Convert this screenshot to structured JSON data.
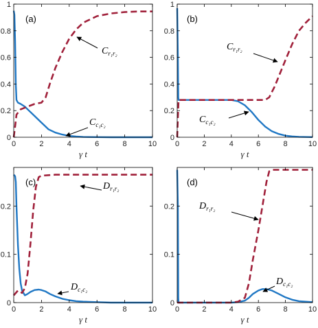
{
  "colors": {
    "c_series": "#1f77c4",
    "r_series": "#a0203a"
  },
  "chart_data": [
    {
      "type": "line",
      "panel": "(a)",
      "xlabel": "γ t",
      "xlim": [
        0,
        10
      ],
      "ylim": [
        0,
        1
      ],
      "xticks": [
        0,
        2,
        4,
        6,
        8,
        10
      ],
      "yticks": [
        0,
        0.2,
        0.4,
        0.6,
        0.8,
        1
      ],
      "ytick_labels": [
        "0",
        "0.2",
        "0.4",
        "0.6",
        "0.8",
        "1"
      ],
      "series": [
        {
          "label_main": "C",
          "label_sub": "c₁c₂",
          "style": "solid",
          "color": "#1f77c4",
          "x": [
            0,
            0.05,
            0.1,
            0.15,
            0.2,
            0.3,
            0.5,
            0.8,
            1.0,
            1.5,
            2.0,
            2.5,
            3.0,
            3.5,
            4.0,
            4.5,
            5.0,
            6.0,
            7.0,
            8.0,
            9.0,
            10.0
          ],
          "y": [
            0.95,
            0.92,
            0.72,
            0.4,
            0.28,
            0.26,
            0.25,
            0.23,
            0.21,
            0.16,
            0.11,
            0.06,
            0.035,
            0.02,
            0.01,
            0.005,
            0.002,
            0.001,
            0,
            0,
            0,
            0
          ]
        },
        {
          "label_main": "C",
          "label_sub": "r₁r₂",
          "style": "dashed",
          "color": "#a0203a",
          "x": [
            0,
            0.1,
            0.2,
            0.5,
            1.0,
            1.5,
            2.0,
            2.3,
            2.6,
            3.0,
            3.5,
            4.0,
            4.5,
            5.0,
            6.0,
            7.0,
            8.0,
            9.0,
            10.0
          ],
          "y": [
            0,
            0.08,
            0.17,
            0.21,
            0.23,
            0.25,
            0.26,
            0.3,
            0.4,
            0.52,
            0.64,
            0.74,
            0.81,
            0.86,
            0.91,
            0.93,
            0.94,
            0.945,
            0.945
          ]
        }
      ]
    },
    {
      "type": "line",
      "panel": "(b)",
      "xlabel": "γ t",
      "xlim": [
        0,
        10
      ],
      "ylim": [
        0,
        1
      ],
      "xticks": [
        0,
        2,
        4,
        6,
        8,
        10
      ],
      "yticks": [
        0,
        0.2,
        0.4,
        0.6,
        0.8,
        1
      ],
      "ytick_labels": [
        "0",
        "0.2",
        "0.4",
        "0.6",
        "0.8",
        "1"
      ],
      "series": [
        {
          "label_main": "C",
          "label_sub": "c₁c₂",
          "style": "solid",
          "color": "#1f77c4",
          "x": [
            0,
            0.05,
            0.08,
            0.1,
            1,
            2,
            3,
            4,
            4.5,
            5,
            5.5,
            6,
            6.5,
            7,
            7.5,
            8,
            8.5,
            9,
            10
          ],
          "y": [
            0.97,
            0.6,
            0.3,
            0.28,
            0.28,
            0.28,
            0.28,
            0.28,
            0.27,
            0.24,
            0.19,
            0.13,
            0.08,
            0.045,
            0.025,
            0.012,
            0.006,
            0.003,
            0.001
          ]
        },
        {
          "label_main": "C",
          "label_sub": "r₁r₂",
          "style": "dashed",
          "color": "#a0203a",
          "x": [
            0,
            0.05,
            0.1,
            1,
            2,
            3,
            4,
            5,
            6,
            6.5,
            6.8,
            7.2,
            7.6,
            8,
            8.5,
            9,
            9.5,
            10
          ],
          "y": [
            0,
            0.15,
            0.28,
            0.28,
            0.28,
            0.28,
            0.28,
            0.28,
            0.28,
            0.28,
            0.3,
            0.38,
            0.48,
            0.58,
            0.7,
            0.8,
            0.86,
            0.91
          ]
        }
      ]
    },
    {
      "type": "line",
      "panel": "(c)",
      "xlabel": "γ t",
      "xlim": [
        0,
        10
      ],
      "ylim": [
        0,
        0.28
      ],
      "xticks": [
        0,
        2,
        4,
        6,
        8,
        10
      ],
      "yticks": [
        0,
        0.1,
        0.2
      ],
      "ytick_labels": [
        "0",
        "0.1",
        "0.2"
      ],
      "series": [
        {
          "label_main": "D",
          "label_sub": "c₁c₂",
          "style": "solid",
          "color": "#1f77c4",
          "x": [
            0,
            0.1,
            0.15,
            0.2,
            0.3,
            0.4,
            0.5,
            0.6,
            0.8,
            1.0,
            1.2,
            1.5,
            1.8,
            2.0,
            2.3,
            2.6,
            3.0,
            3.5,
            4.0,
            4.5,
            5.0,
            6.0,
            7.0,
            10.0
          ],
          "y": [
            0.265,
            0.262,
            0.25,
            0.2,
            0.12,
            0.07,
            0.04,
            0.025,
            0.015,
            0.018,
            0.022,
            0.026,
            0.027,
            0.026,
            0.023,
            0.018,
            0.013,
            0.008,
            0.005,
            0.003,
            0.002,
            0.001,
            0,
            0
          ]
        },
        {
          "label_main": "D",
          "label_sub": "r₁r₂",
          "style": "dashed",
          "color": "#a0203a",
          "x": [
            0,
            0.3,
            0.6,
            0.8,
            1.0,
            1.2,
            1.4,
            1.6,
            1.8,
            2.0,
            2.5,
            3,
            4,
            6,
            8,
            10
          ],
          "y": [
            0.015,
            0.025,
            0.02,
            0.03,
            0.06,
            0.12,
            0.19,
            0.24,
            0.26,
            0.263,
            0.264,
            0.265,
            0.265,
            0.265,
            0.265,
            0.265
          ]
        }
      ]
    },
    {
      "type": "line",
      "panel": "(d)",
      "xlabel": "γ t",
      "xlim": [
        0,
        10
      ],
      "ylim": [
        0,
        0.28
      ],
      "xticks": [
        0,
        2,
        4,
        6,
        8,
        10
      ],
      "yticks": [
        0,
        0.1,
        0.2
      ],
      "ytick_labels": [
        "0",
        "0.1",
        "0.2"
      ],
      "series": [
        {
          "label_main": "D",
          "label_sub": "c₁c₂",
          "style": "solid",
          "color": "#1f77c4",
          "x": [
            0,
            0.05,
            0.08,
            0.1,
            1,
            2,
            3,
            4,
            4.5,
            5.0,
            5.3,
            5.6,
            6.0,
            6.3,
            6.6,
            7.0,
            7.5,
            8.0,
            8.5,
            9.0,
            10.0
          ],
          "y": [
            0.275,
            0.2,
            0.01,
            0,
            0,
            0,
            0,
            0,
            0.001,
            0.004,
            0.01,
            0.018,
            0.025,
            0.028,
            0.028,
            0.025,
            0.018,
            0.011,
            0.006,
            0.003,
            0.001
          ]
        },
        {
          "label_main": "D",
          "label_sub": "r₁r₂",
          "style": "dashed",
          "color": "#a0203a",
          "x": [
            0,
            1,
            2,
            3,
            4,
            4.5,
            5.0,
            5.3,
            5.6,
            6.0,
            6.3,
            6.6,
            6.8,
            7.0,
            8.0,
            9.0,
            10.0
          ],
          "y": [
            0,
            0,
            0,
            0,
            0,
            0.002,
            0.01,
            0.04,
            0.09,
            0.15,
            0.2,
            0.25,
            0.272,
            0.275,
            0.275,
            0.275,
            0.275
          ]
        }
      ]
    }
  ]
}
